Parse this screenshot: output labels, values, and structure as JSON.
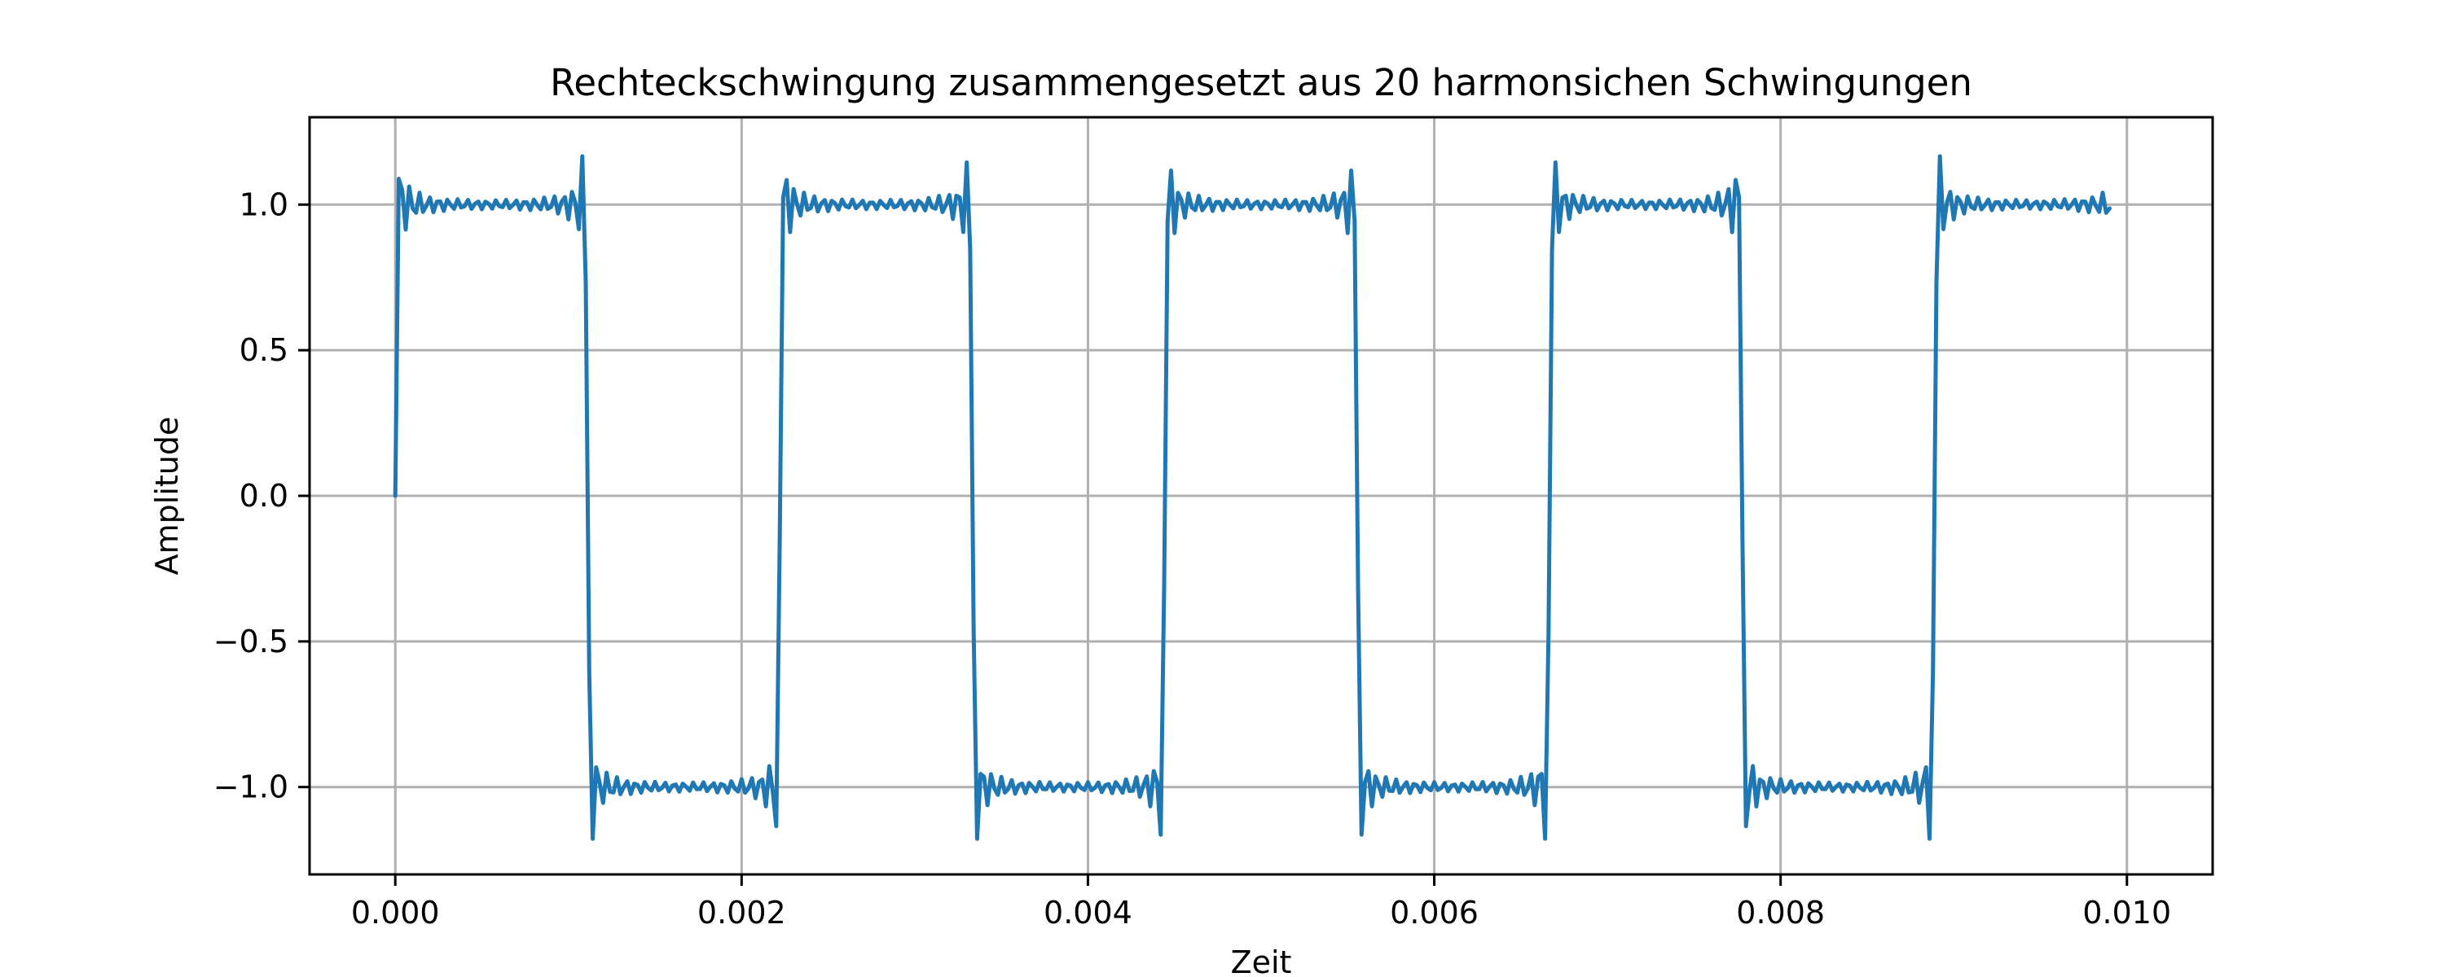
{
  "chart_data": {
    "type": "line",
    "title": "Rechteckschwingung zusammengesetzt aus 20 harmonsichen Schwingungen",
    "xlabel": "Zeit",
    "ylabel": "Amplitude",
    "xlim": [
      -0.000495,
      0.010495
    ],
    "ylim": [
      -1.3,
      1.3
    ],
    "grid": true,
    "x_ticks": [
      0.0,
      0.002,
      0.004,
      0.006,
      0.008,
      0.01
    ],
    "x_tick_labels": [
      "0.000",
      "0.002",
      "0.004",
      "0.006",
      "0.008",
      "0.010"
    ],
    "y_ticks": [
      1.0,
      0.5,
      0.0,
      -0.5,
      -1.0
    ],
    "y_tick_labels": [
      "1.0",
      "0.5",
      "0.0",
      "−0.5",
      "−1.0"
    ],
    "series": [
      {
        "color": "#1f77b4",
        "x_start": 0.0,
        "x_end": 0.0099,
        "num_points": 496,
        "frequency_hz": 450,
        "harmonics": 20,
        "amplitude": 1.0
      }
    ]
  }
}
